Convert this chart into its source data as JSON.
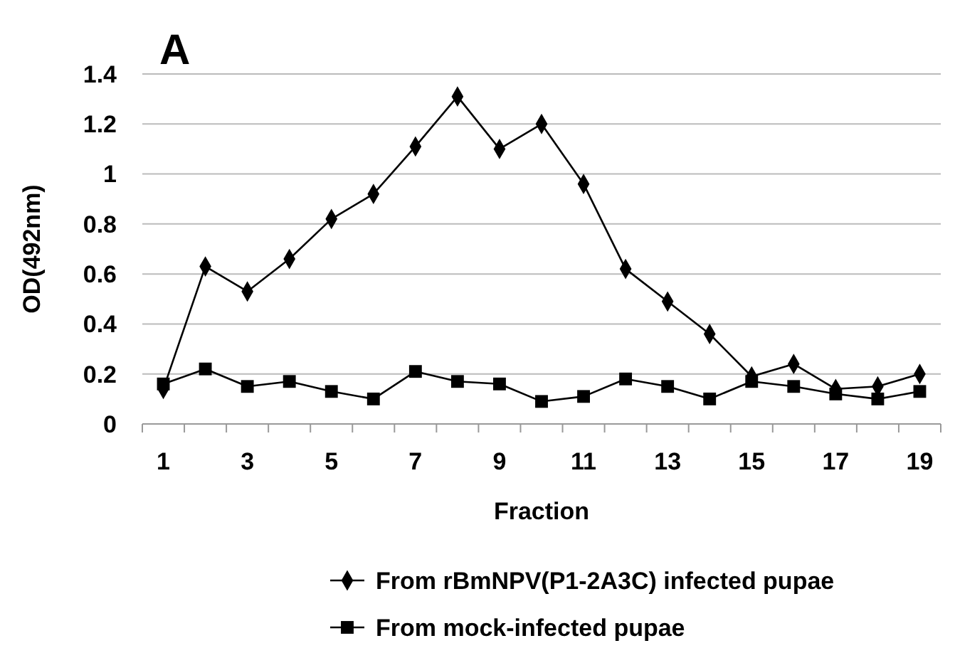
{
  "chart_data": {
    "type": "line",
    "title": "A",
    "xlabel": "Fraction",
    "ylabel": "OD(492nm)",
    "x": [
      1,
      2,
      3,
      4,
      5,
      6,
      7,
      8,
      9,
      10,
      11,
      12,
      13,
      14,
      15,
      16,
      17,
      18,
      19
    ],
    "xlim": [
      0.5,
      19.5
    ],
    "xticks": [
      {
        "value": 0.5,
        "label": null
      },
      1,
      {
        "value": 1.5,
        "label": null
      },
      {
        "value": 2.5,
        "label": null
      },
      3,
      {
        "value": 3.5,
        "label": null
      },
      {
        "value": 4.5,
        "label": null
      },
      5,
      {
        "value": 5.5,
        "label": null
      },
      {
        "value": 6.5,
        "label": null
      },
      7,
      {
        "value": 7.5,
        "label": null
      },
      {
        "value": 8.5,
        "label": null
      },
      9,
      {
        "value": 9.5,
        "label": null
      },
      {
        "value": 10.5,
        "label": null
      },
      11,
      {
        "value": 11.5,
        "label": null
      },
      {
        "value": 12.5,
        "label": null
      },
      13,
      {
        "value": 13.5,
        "label": null
      },
      {
        "value": 14.5,
        "label": null
      },
      15,
      {
        "value": 15.5,
        "label": null
      },
      {
        "value": 16.5,
        "label": null
      },
      17,
      {
        "value": 17.5,
        "label": null
      },
      {
        "value": 18.5,
        "label": null
      },
      19,
      {
        "value": 19.5,
        "label": null
      }
    ],
    "series": [
      {
        "name": "From rBmNPV(P1-2A3C) infected pupae",
        "color": "#000000",
        "marker": "diamond",
        "values": [
          0.14,
          0.63,
          0.53,
          0.66,
          0.82,
          0.92,
          1.11,
          1.31,
          1.1,
          1.2,
          0.96,
          0.62,
          0.49,
          0.36,
          0.19,
          0.24,
          0.14,
          0.15,
          0.2
        ]
      },
      {
        "name": "From mock-infected pupae",
        "color": "#000000",
        "marker": "square",
        "values": [
          0.16,
          0.22,
          0.15,
          0.17,
          0.13,
          0.1,
          0.21,
          0.17,
          0.16,
          0.09,
          0.11,
          0.18,
          0.15,
          0.1,
          0.17,
          0.15,
          0.12,
          0.1,
          0.13
        ]
      }
    ],
    "ylim": [
      0,
      1.4
    ],
    "yticks": [
      0,
      0.2,
      0.4,
      0.6,
      0.8,
      1,
      1.2,
      1.4
    ],
    "grid": "y",
    "legend": "bottom",
    "line_style": "solid"
  }
}
